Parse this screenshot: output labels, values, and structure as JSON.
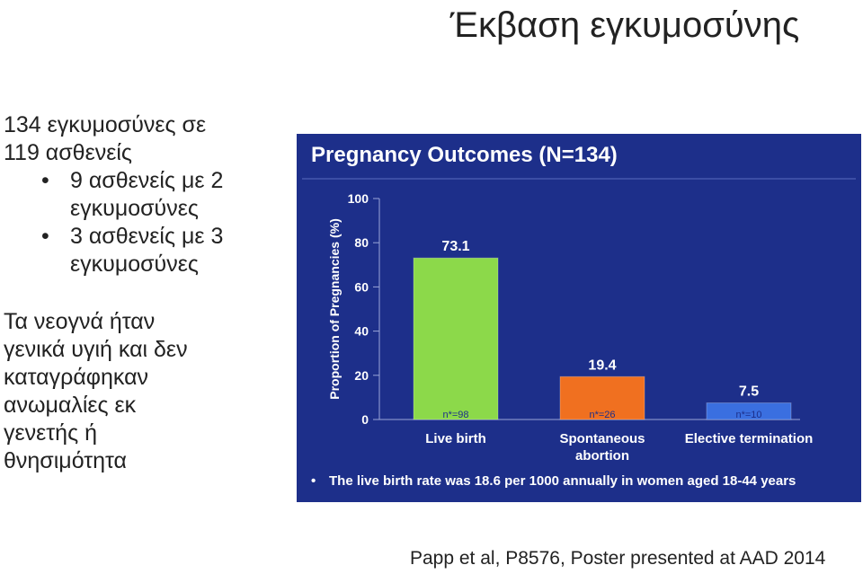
{
  "slide": {
    "title": "Έκβαση εγκυμοσύνης",
    "intro_line1": "134 εγκυμοσύνες σε",
    "intro_line2": "119 ασθενείς",
    "bullets": [
      {
        "line1": "9 ασθενείς με 2",
        "line2": "εγκυμοσύνες"
      },
      {
        "line1": "3 ασθενείς με 3",
        "line2": "εγκυμοσύνες"
      }
    ],
    "para2_lines": [
      "Τα νεογνά ήταν",
      "γενικά υγιή και δεν",
      "καταγράφηκαν",
      "ανωμαλίες εκ",
      "γενετής ή",
      "θνησιμότητα"
    ],
    "citation": "Papp et al, P8576, Poster presented at AAD 2014"
  },
  "chart_data": {
    "type": "bar",
    "title": "Pregnancy Outcomes (N=134)",
    "ylabel": "Proportion of Pregnancies (%)",
    "ylim": [
      0,
      100
    ],
    "yticks": [
      "0",
      "20",
      "40",
      "60",
      "80",
      "100"
    ],
    "grid": false,
    "categories": [
      {
        "line1": "Live birth",
        "line2": ""
      },
      {
        "line1": "Spontaneous",
        "line2": "abortion"
      },
      {
        "line1": "Elective termination",
        "line2": ""
      }
    ],
    "values": [
      73.1,
      19.4,
      7.5
    ],
    "value_labels": [
      "73.1",
      "19.4",
      "7.5"
    ],
    "counts": [
      "n*=98",
      "n*=26",
      "n*=10"
    ],
    "bar_colors": [
      "#8cd94a",
      "#f07020",
      "#3a6fe0"
    ],
    "footnote": "The live birth rate was 18.6 per 1000  annually in women aged 18-44 years"
  }
}
